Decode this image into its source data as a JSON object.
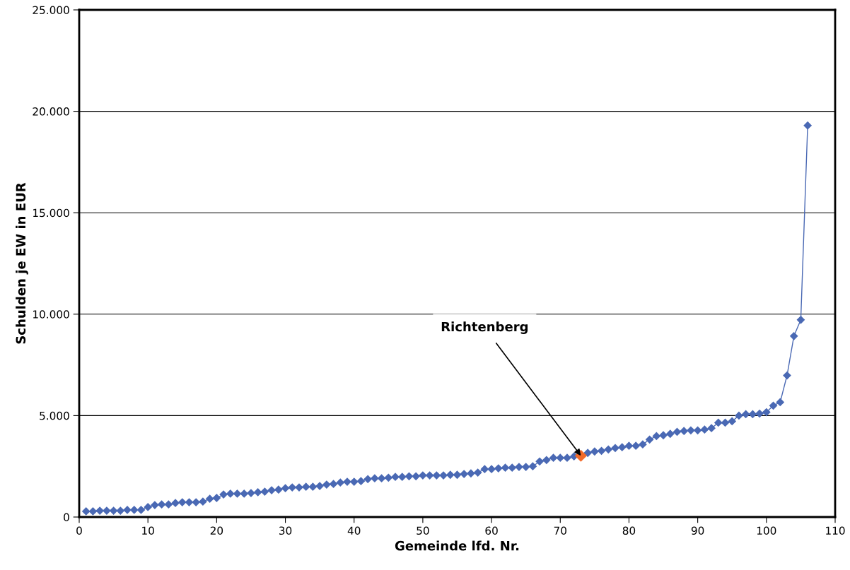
{
  "chart_data": {
    "type": "line",
    "xlabel": "Gemeinde lfd. Nr.",
    "ylabel": "Schulden je EW in EUR",
    "x": [
      1,
      2,
      3,
      4,
      5,
      6,
      7,
      8,
      9,
      10,
      11,
      12,
      13,
      14,
      15,
      16,
      17,
      18,
      19,
      20,
      21,
      22,
      23,
      24,
      25,
      26,
      27,
      28,
      29,
      30,
      31,
      32,
      33,
      34,
      35,
      36,
      37,
      38,
      39,
      40,
      41,
      42,
      43,
      44,
      45,
      46,
      47,
      48,
      49,
      50,
      51,
      52,
      53,
      54,
      55,
      56,
      57,
      58,
      59,
      60,
      61,
      62,
      63,
      64,
      65,
      66,
      67,
      68,
      69,
      70,
      71,
      72,
      73,
      74,
      75,
      76,
      77,
      78,
      79,
      80,
      81,
      82,
      83,
      84,
      85,
      86,
      87,
      88,
      89,
      90,
      91,
      92,
      93,
      94,
      95,
      96,
      97,
      98,
      99,
      100,
      101,
      102,
      103,
      104,
      105,
      106
    ],
    "series": [
      {
        "color": "#4a69b4",
        "marker": "diamond",
        "values": [
          280,
          280,
          310,
          310,
          310,
          310,
          350,
          350,
          350,
          490,
          590,
          620,
          620,
          690,
          730,
          730,
          730,
          760,
          900,
          940,
          1110,
          1150,
          1150,
          1150,
          1180,
          1220,
          1250,
          1320,
          1350,
          1420,
          1460,
          1460,
          1490,
          1490,
          1530,
          1600,
          1630,
          1700,
          1740,
          1740,
          1770,
          1870,
          1910,
          1910,
          1940,
          1980,
          1980,
          2010,
          2010,
          2050,
          2050,
          2050,
          2050,
          2080,
          2080,
          2120,
          2150,
          2190,
          2360,
          2360,
          2400,
          2430,
          2430,
          2470,
          2470,
          2500,
          2740,
          2810,
          2920,
          2920,
          2920,
          2990,
          3020,
          3160,
          3230,
          3260,
          3330,
          3400,
          3440,
          3510,
          3510,
          3580,
          3820,
          3990,
          4030,
          4100,
          4200,
          4240,
          4270,
          4270,
          4310,
          4380,
          4650,
          4650,
          4720,
          5000,
          5070,
          5070,
          5100,
          5170,
          5490,
          5660,
          6980,
          8920,
          9720,
          19300
        ]
      },
      {
        "type": "scatter",
        "color": "#f26a2a",
        "marker": "diamond",
        "x": [
          73
        ],
        "values": [
          3020
        ]
      }
    ],
    "annotations": [
      {
        "text": "Richtenberg",
        "x": 73,
        "y": 3020
      }
    ],
    "xlim": [
      0,
      110
    ],
    "xticks": [
      0,
      10,
      20,
      30,
      40,
      50,
      60,
      70,
      80,
      90,
      100,
      110
    ],
    "ylim": [
      0,
      25000
    ],
    "yticks": [
      {
        "value": 0,
        "label": "0"
      },
      {
        "value": 5000,
        "label": "5.000"
      },
      {
        "value": 10000,
        "label": "10.000"
      },
      {
        "value": 15000,
        "label": "15.000"
      },
      {
        "value": 20000,
        "label": "20.000"
      },
      {
        "value": 25000,
        "label": "25.000"
      }
    ],
    "grid": "y",
    "legend": false
  }
}
